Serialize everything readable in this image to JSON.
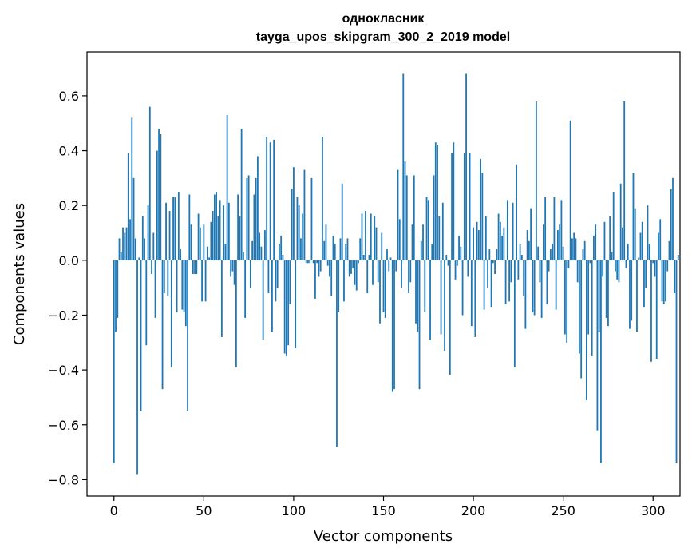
{
  "chart_data": {
    "type": "bar",
    "title": "однокласник",
    "subtitle": "tayga_upos_skipgram_300_2_2019 model",
    "xlabel": "Vector components",
    "ylabel": "Components values",
    "xlim": [
      -15,
      315
    ],
    "ylim": [
      -0.86,
      0.76
    ],
    "x_ticks": [
      0,
      50,
      100,
      150,
      200,
      250,
      300
    ],
    "x_tick_labels": [
      "0",
      "50",
      "100",
      "150",
      "200",
      "250",
      "300"
    ],
    "y_ticks": [
      -0.8,
      -0.6,
      -0.4,
      -0.2,
      0.0,
      0.2,
      0.4,
      0.6
    ],
    "y_tick_labels": [
      "−0.8",
      "−0.6",
      "−0.4",
      "−0.2",
      "0.0",
      "0.2",
      "0.4",
      "0.6"
    ],
    "bar_color": "#1f77b4",
    "grid": false,
    "values": [
      -0.74,
      -0.26,
      -0.21,
      0.08,
      0.03,
      0.12,
      0.1,
      0.12,
      0.39,
      0.15,
      0.52,
      0.3,
      0.08,
      -0.78,
      0.01,
      -0.55,
      0.16,
      0.08,
      -0.31,
      0.2,
      0.56,
      -0.05,
      0.1,
      -0.21,
      0.4,
      0.48,
      0.46,
      -0.47,
      -0.12,
      0.21,
      -0.13,
      0.18,
      -0.39,
      0.23,
      0.23,
      -0.19,
      0.25,
      0.04,
      -0.18,
      -0.19,
      -0.24,
      -0.55,
      0.24,
      0.13,
      -0.05,
      -0.05,
      -0.05,
      0.17,
      0.12,
      -0.15,
      0.13,
      -0.15,
      0.05,
      0.01,
      0.14,
      0.18,
      0.24,
      0.25,
      0.16,
      0.22,
      -0.28,
      0.2,
      0.06,
      0.53,
      0.21,
      -0.06,
      -0.04,
      -0.09,
      -0.39,
      0.24,
      0.16,
      0.48,
      0.03,
      -0.21,
      0.3,
      0.31,
      -0.1,
      0.07,
      0.24,
      0.3,
      0.38,
      0.1,
      0.05,
      -0.29,
      0.11,
      0.45,
      -0.12,
      0.43,
      -0.26,
      0.44,
      -0.15,
      -0.1,
      0.06,
      0.09,
      0.02,
      -0.34,
      -0.35,
      -0.31,
      -0.16,
      0.26,
      0.34,
      -0.32,
      0.23,
      0.2,
      0.08,
      0.17,
      0.33,
      -0.01,
      -0.01,
      -0.01,
      0.3,
      -0.01,
      -0.14,
      -0.01,
      -0.06,
      -0.04,
      0.45,
      0.07,
      0.13,
      -0.02,
      -0.06,
      -0.13,
      0.09,
      0.06,
      -0.68,
      -0.19,
      0.08,
      0.28,
      -0.15,
      0.06,
      0.08,
      -0.06,
      -0.05,
      -0.03,
      -0.09,
      -0.11,
      -0.01,
      0.08,
      0.17,
      0.02,
      0.18,
      -0.12,
      0.02,
      0.17,
      -0.09,
      0.16,
      0.12,
      -0.08,
      -0.23,
      0.1,
      -0.19,
      -0.21,
      0.04,
      -0.04,
      0.01,
      -0.48,
      -0.47,
      -0.04,
      0.33,
      0.15,
      -0.1,
      0.68,
      0.36,
      0.31,
      -0.12,
      -0.08,
      0.13,
      0.31,
      -0.23,
      -0.26,
      -0.47,
      0.07,
      0.13,
      -0.19,
      0.23,
      0.22,
      -0.29,
      0.06,
      0.31,
      0.43,
      0.42,
      0.16,
      -0.27,
      0.21,
      -0.33,
      0.02,
      -0.02,
      -0.42,
      0.39,
      0.43,
      -0.07,
      -0.02,
      0.09,
      0.05,
      -0.2,
      0.39,
      0.68,
      -0.06,
      0.39,
      -0.24,
      0.12,
      -0.28,
      0.14,
      0.11,
      0.37,
      0.32,
      -0.18,
      0.16,
      -0.1,
      0.04,
      -0.17,
      -0.01,
      -0.05,
      0.04,
      0.17,
      0.14,
      0.09,
      0.12,
      -0.16,
      0.22,
      -0.15,
      -0.08,
      0.21,
      -0.39,
      0.35,
      -0.07,
      0.06,
      0.02,
      -0.13,
      -0.25,
      0.11,
      0.07,
      0.19,
      -0.19,
      -0.2,
      0.58,
      0.05,
      -0.08,
      -0.21,
      0.13,
      0.23,
      -0.16,
      -0.04,
      0.04,
      0.06,
      0.23,
      -0.18,
      0.11,
      0.13,
      0.22,
      0.05,
      -0.27,
      -0.3,
      -0.03,
      0.51,
      0.08,
      0.1,
      0.08,
      -0.08,
      -0.34,
      -0.43,
      0.04,
      0.07,
      -0.51,
      -0.27,
      -0.01,
      -0.35,
      0.09,
      0.13,
      -0.62,
      -0.26,
      -0.74,
      -0.06,
      0.14,
      -0.21,
      -0.24,
      0.16,
      0.03,
      0.25,
      -0.04,
      -0.07,
      -0.08,
      0.28,
      0.12,
      0.58,
      -0.03,
      0.06,
      -0.25,
      -0.22,
      0.32,
      0.19,
      -0.26,
      0.01,
      0.1,
      0.14,
      -0.17,
      -0.1,
      0.2,
      0.06,
      -0.37,
      -0.01,
      -0.06,
      -0.36,
      0.1,
      0.15,
      -0.15,
      -0.16,
      -0.15,
      -0.04,
      0.07,
      0.26,
      0.3,
      -0.12,
      -0.74,
      0.02
    ]
  }
}
